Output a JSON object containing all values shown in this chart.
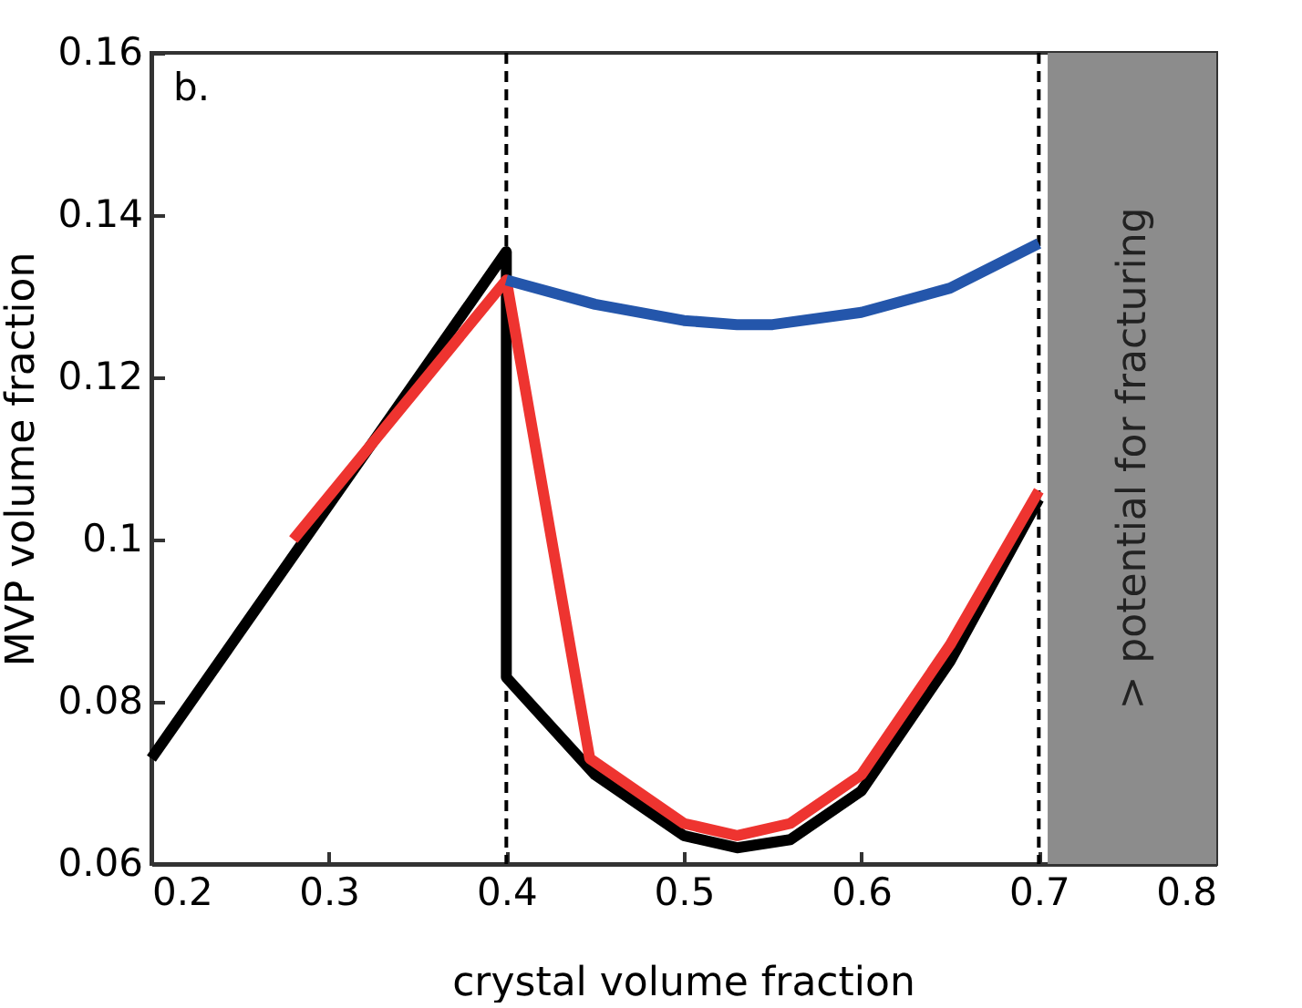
{
  "chart_data": {
    "type": "line",
    "xlabel": "crystal volume fraction",
    "ylabel": "MVP volume fraction",
    "annotations": [
      "b."
    ],
    "series": [
      {
        "color": "#000000",
        "x": [
          0.2,
          0.4,
          0.4,
          0.45,
          0.5,
          0.53,
          0.56,
          0.6,
          0.65,
          0.7
        ],
        "values": [
          0.073,
          0.1355,
          0.083,
          0.071,
          0.0635,
          0.062,
          0.063,
          0.069,
          0.085,
          0.105
        ]
      },
      {
        "color": "#ee3430",
        "x": [
          0.28,
          0.4,
          0.447,
          0.5,
          0.53,
          0.56,
          0.6,
          0.65,
          0.7
        ],
        "values": [
          0.1,
          0.132,
          0.073,
          0.065,
          0.0635,
          0.065,
          0.071,
          0.087,
          0.106
        ]
      },
      {
        "color": "#2456ab",
        "x": [
          0.4,
          0.45,
          0.5,
          0.53,
          0.55,
          0.6,
          0.65,
          0.7
        ],
        "values": [
          0.132,
          0.129,
          0.127,
          0.1265,
          0.1265,
          0.128,
          0.131,
          0.1365
        ]
      }
    ],
    "xlim": [
      0.2,
      0.8
    ],
    "xticks": [
      0.2,
      0.3,
      0.4,
      0.5,
      0.6,
      0.7,
      0.8
    ],
    "ylim": [
      0.06,
      0.16
    ],
    "yticks": [
      0.06,
      0.08,
      0.1,
      0.12,
      0.14,
      0.16
    ],
    "ref_lines": [
      {
        "axis": "x",
        "value": 0.4,
        "line_style": "dashed",
        "color": "#000000"
      },
      {
        "axis": "x",
        "value": 0.7,
        "line_style": "dashed",
        "color": "#000000"
      }
    ],
    "bands": [
      {
        "axis": "x",
        "from": 0.705,
        "to": 0.8,
        "label": "> potential for fracturing",
        "color": "#8c8c8c"
      }
    ],
    "grid": false,
    "marker": "none",
    "line_style": "solid"
  }
}
